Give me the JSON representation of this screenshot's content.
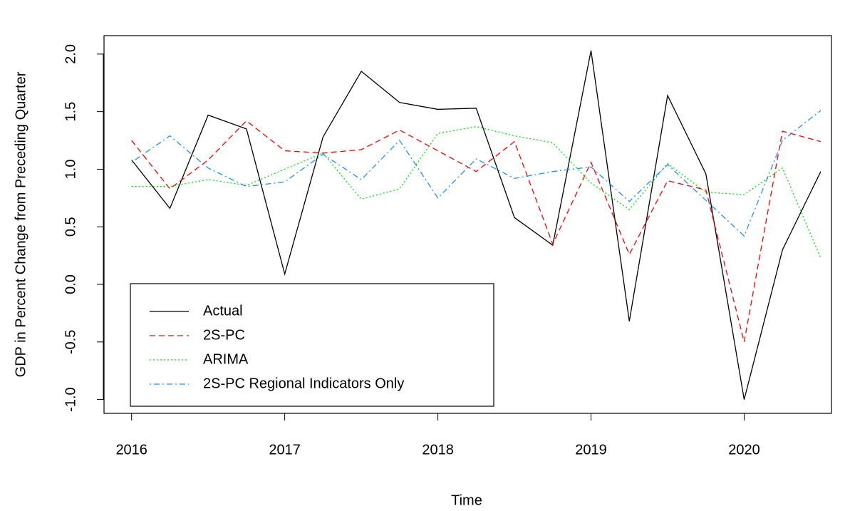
{
  "chart_data": {
    "type": "line",
    "xlabel": "Time",
    "ylabel": "GDP in Percent Change from Preceding Quarter",
    "x": [
      2016,
      2016.25,
      2016.5,
      2016.75,
      2017,
      2017.25,
      2017.5,
      2017.75,
      2018,
      2018.25,
      2018.5,
      2018.75,
      2019,
      2019.25,
      2019.5,
      2019.75,
      2020,
      2020.25,
      2020.5
    ],
    "series": [
      {
        "name": "Actual",
        "color": "#000000",
        "dash": "none",
        "values": [
          1.08,
          0.66,
          1.47,
          1.35,
          0.09,
          1.28,
          1.85,
          1.58,
          1.52,
          1.53,
          0.58,
          0.34,
          2.03,
          -0.32,
          1.64,
          0.96,
          -1.0,
          0.3,
          0.98
        ]
      },
      {
        "name": "2S-PC",
        "color": "#ff0000",
        "dash": "8,5",
        "values": [
          1.25,
          0.83,
          1.08,
          1.42,
          1.16,
          1.14,
          1.17,
          1.34,
          1.16,
          0.98,
          1.24,
          0.35,
          1.06,
          0.26,
          0.9,
          0.82,
          -0.5,
          1.33,
          1.24
        ]
      },
      {
        "name": "ARIMA",
        "color": "#00e000",
        "dash": "2,3",
        "values": [
          0.85,
          0.85,
          0.91,
          0.86,
          1.0,
          1.14,
          0.74,
          0.83,
          1.31,
          1.37,
          1.29,
          1.23,
          0.88,
          0.65,
          1.05,
          0.8,
          0.78,
          1.01,
          0.23
        ]
      },
      {
        "name": "2S-PC Regional Indicators Only",
        "color": "#1e90ff",
        "dash": "2,4,8,4",
        "values": [
          1.06,
          1.29,
          1.01,
          0.85,
          0.89,
          1.13,
          0.91,
          1.25,
          0.75,
          1.09,
          0.92,
          0.98,
          1.02,
          0.72,
          1.04,
          0.73,
          0.42,
          1.25,
          1.51
        ]
      }
    ],
    "xlim": [
      2015.82,
      2020.57
    ],
    "xticks": [
      2016,
      2017,
      2018,
      2019,
      2020
    ],
    "ylim": [
      -1.12,
      2.16
    ],
    "yticks": [
      {
        "value": -1,
        "label": "-1.0"
      },
      {
        "value": -0.5,
        "label": "-0.5"
      },
      {
        "value": 0,
        "label": "0.0"
      },
      {
        "value": 0.5,
        "label": "0.5"
      },
      {
        "value": 1,
        "label": "1.0"
      },
      {
        "value": 1.5,
        "label": "1.5"
      },
      {
        "value": 2,
        "label": "2.0"
      }
    ],
    "legend": "bottom-left"
  }
}
